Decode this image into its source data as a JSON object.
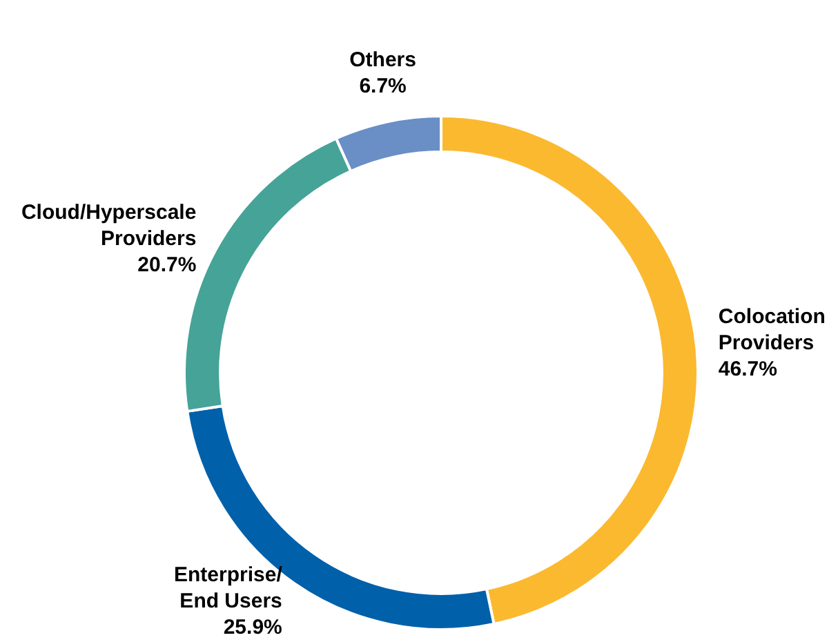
{
  "chart_data": {
    "type": "donut",
    "categories": [
      "Colocation Providers",
      "Enterprise/ End Users",
      "Cloud/Hyperscale Providers",
      "Others"
    ],
    "values": [
      46.7,
      25.9,
      20.7,
      6.7
    ],
    "colors": [
      "#fbb92f",
      "#0060aa",
      "#46a397",
      "#6a8ec6"
    ],
    "value_labels": [
      "46.7%",
      "25.9%",
      "20.7%",
      "6.7%"
    ],
    "legend": false
  }
}
